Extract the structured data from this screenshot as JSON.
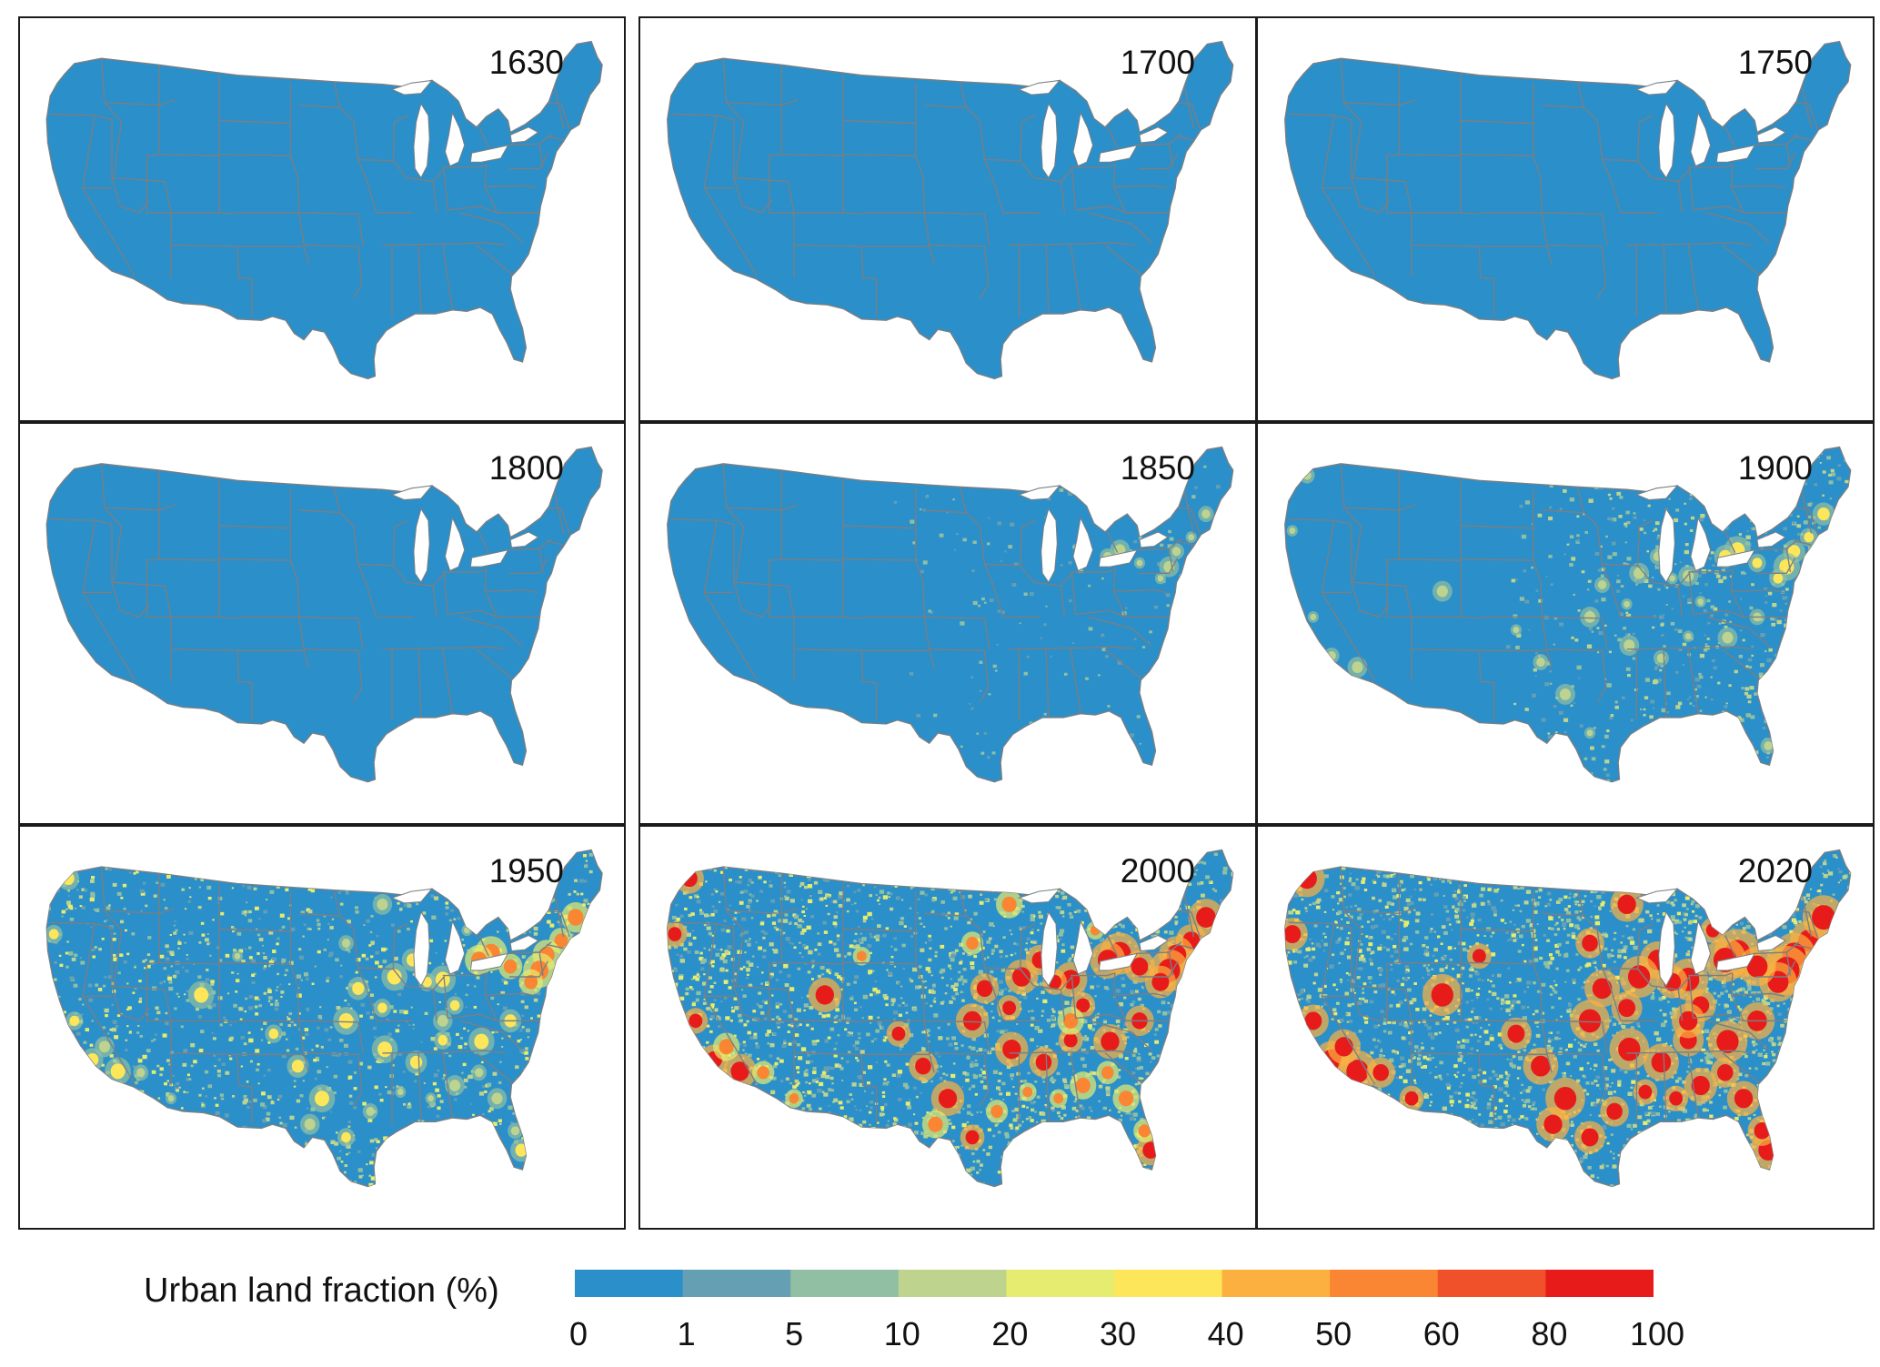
{
  "panels": [
    {
      "year": "1630",
      "stage": 0
    },
    {
      "year": "1700",
      "stage": 0
    },
    {
      "year": "1750",
      "stage": 0
    },
    {
      "year": "1800",
      "stage": 0
    },
    {
      "year": "1850",
      "stage": 1
    },
    {
      "year": "1900",
      "stage": 2
    },
    {
      "year": "1950",
      "stage": 3
    },
    {
      "year": "2000",
      "stage": 4
    },
    {
      "year": "2020",
      "stage": 5
    }
  ],
  "legend": {
    "title": "Urban land fraction (%)",
    "ticks": [
      "0",
      "1",
      "5",
      "10",
      "20",
      "30",
      "40",
      "50",
      "60",
      "80",
      "100"
    ],
    "colors": [
      "#2b8fc9",
      "#649fb4",
      "#91bfa3",
      "#bed48e",
      "#e6ec6f",
      "#fde65a",
      "#fcb040",
      "#fa8532",
      "#f1512a",
      "#e81b1b"
    ]
  },
  "style": {
    "land": "#2b8fc9",
    "border": "#7a7f83",
    "lake": "#ffffff"
  }
}
